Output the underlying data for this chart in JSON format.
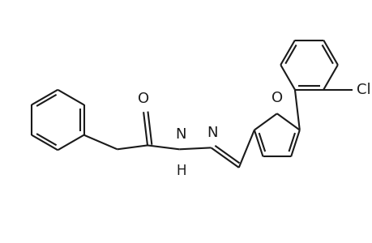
{
  "bg_color": "#ffffff",
  "line_color": "#1a1a1a",
  "line_width": 1.5,
  "font_size": 12,
  "figsize": [
    4.6,
    3.0
  ],
  "dpi": 100,
  "xlim": [
    0,
    4.6
  ],
  "ylim": [
    0,
    3.0
  ]
}
